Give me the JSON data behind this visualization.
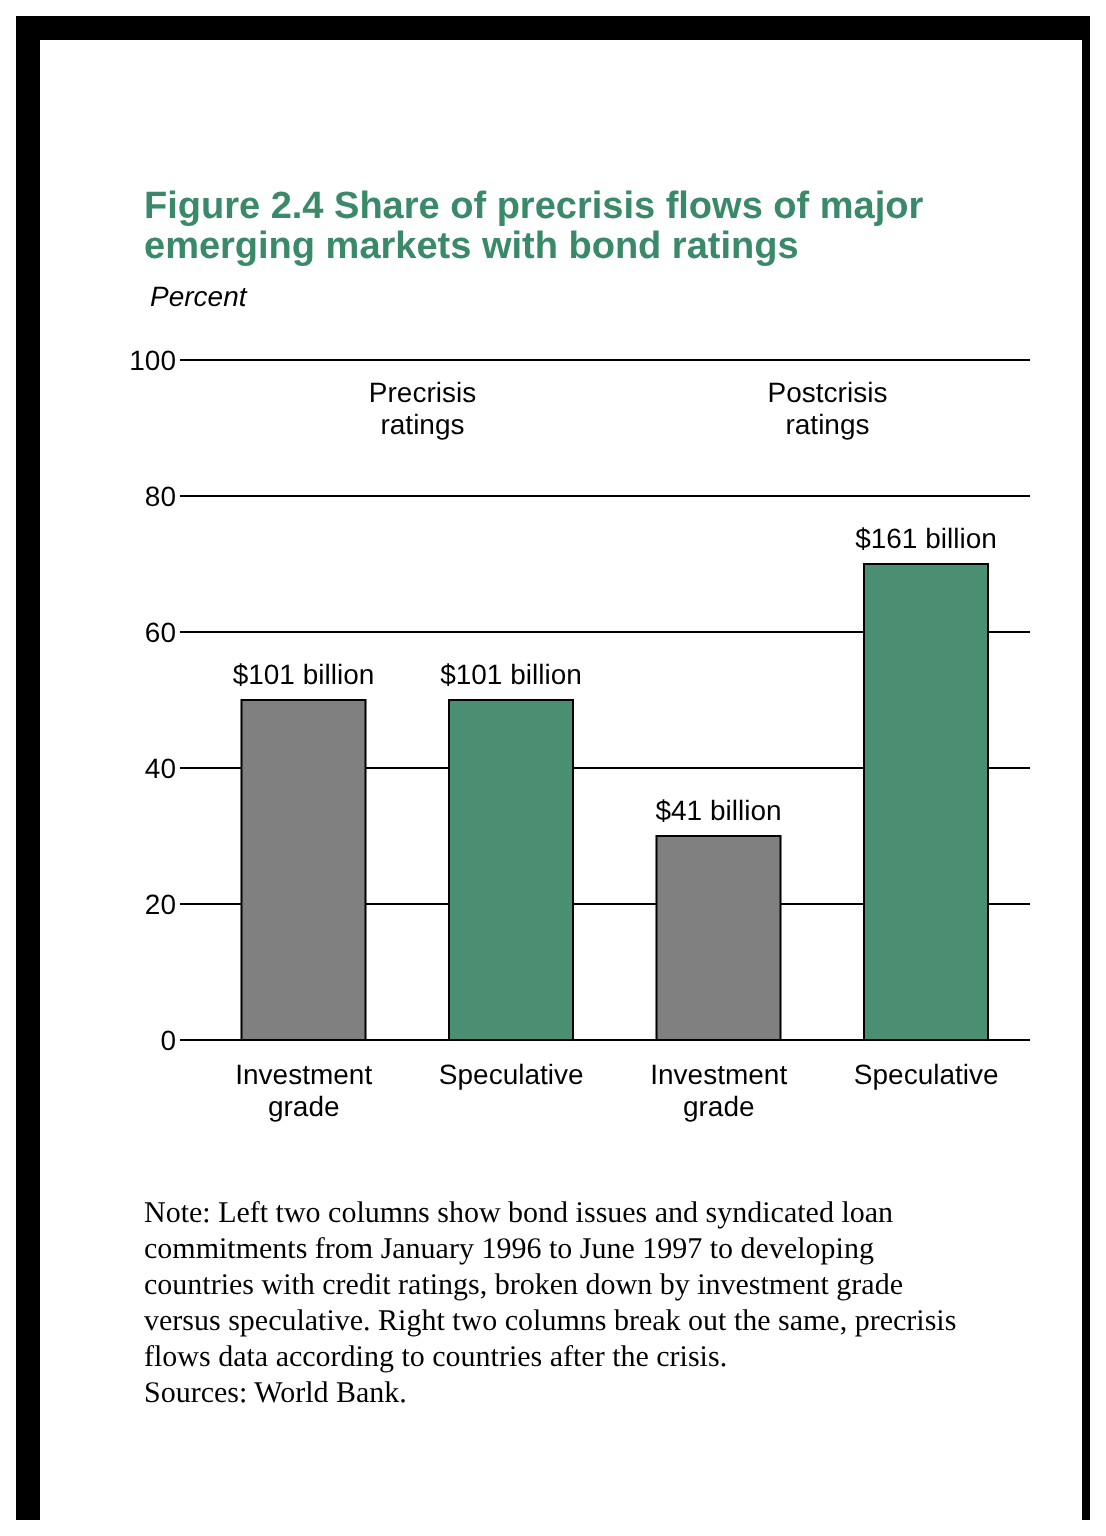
{
  "chart_data": {
    "type": "bar",
    "title": "Figure 2.4  Share of precrisis flows of major emerging markets with bond ratings",
    "ylabel": "Percent",
    "categories": [
      "Investment grade",
      "Speculative",
      "Investment grade",
      "Speculative"
    ],
    "values": [
      50,
      50,
      30,
      70
    ],
    "colors": [
      "#808080",
      "#4a8f72",
      "#808080",
      "#4a8f72"
    ],
    "ylim": [
      0,
      100
    ],
    "yticks": [
      0,
      20,
      40,
      60,
      80,
      100
    ],
    "grid": "y",
    "annotations": [
      "Precrisis ratings",
      "Postcrisis ratings",
      "$101 billion",
      "$101 billion",
      "$41 billion",
      "$161 billion",
      "Note: Left two columns show bond issues and syndicated loan commitments from January 1996 to June 1997 to developing countries with credit ratings, broken down by investment grade versus speculative. Right two columns break out the same, precrisis flows data according to countries after the crisis.",
      "Sources: World Bank."
    ]
  }
}
